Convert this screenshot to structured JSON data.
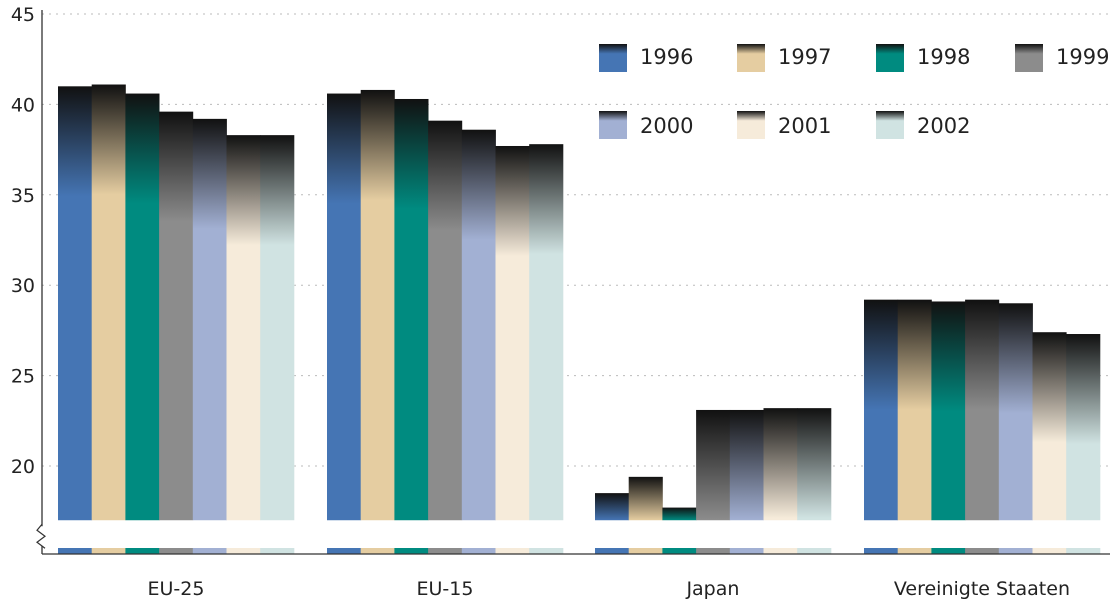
{
  "chart_data": {
    "type": "bar",
    "categories": [
      "EU-25",
      "EU-15",
      "Japan",
      "Vereinigte Staaten"
    ],
    "series": [
      {
        "name": "1996",
        "color": "#4575b4",
        "values": [
          41.0,
          40.6,
          18.5,
          29.2
        ]
      },
      {
        "name": "1997",
        "color": "#e5cda1",
        "values": [
          41.1,
          40.8,
          19.4,
          29.2
        ]
      },
      {
        "name": "1998",
        "color": "#008b80",
        "values": [
          40.6,
          40.3,
          17.7,
          29.1
        ]
      },
      {
        "name": "1999",
        "color": "#8c8c8c",
        "values": [
          39.6,
          39.1,
          23.1,
          29.2
        ]
      },
      {
        "name": "2000",
        "color": "#a2b0d3",
        "values": [
          39.2,
          38.6,
          23.1,
          29.0
        ]
      },
      {
        "name": "2001",
        "color": "#f6ebda",
        "values": [
          38.3,
          37.7,
          23.2,
          27.4
        ]
      },
      {
        "name": "2002",
        "color": "#d0e3e2",
        "values": [
          38.3,
          37.8,
          23.2,
          27.3
        ]
      }
    ],
    "y_ticks": [
      "20",
      "25",
      "30",
      "35",
      "40",
      "45"
    ],
    "ylim": [
      17,
      45
    ],
    "axis_break": true,
    "grid": true,
    "legend": "top-right"
  }
}
